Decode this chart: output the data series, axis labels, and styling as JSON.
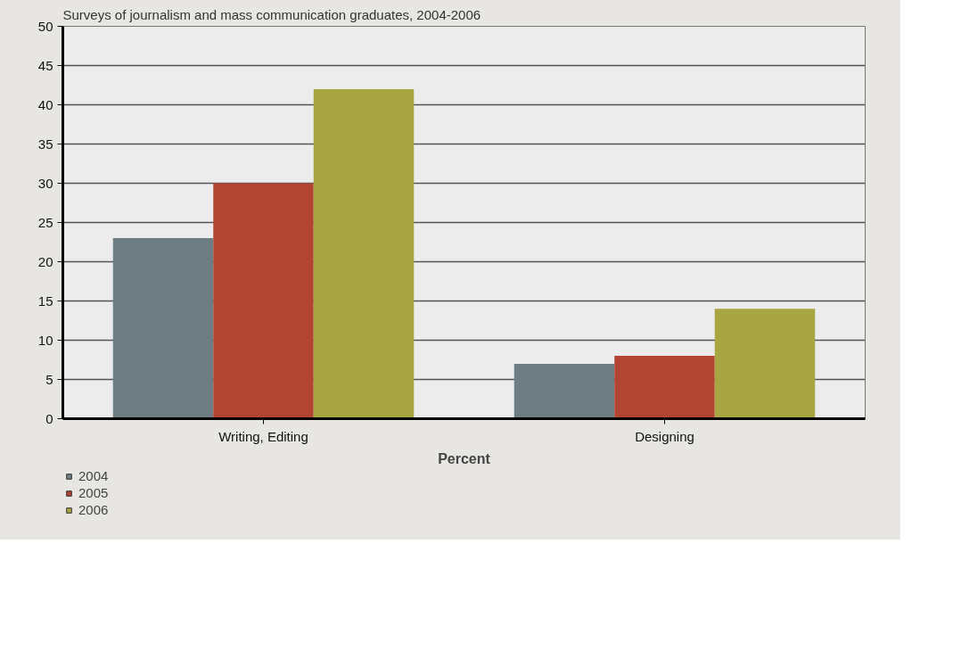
{
  "chart_data": {
    "type": "bar",
    "title": "Surveys of journalism and mass communication graduates, 2004-2006",
    "xlabel": "Percent",
    "categories": [
      "Writing, Editing",
      "Designing"
    ],
    "series": [
      {
        "name": "2004",
        "color": "#6e7c83",
        "values": [
          23,
          7
        ]
      },
      {
        "name": "2005",
        "color": "#b14432",
        "values": [
          30,
          8
        ]
      },
      {
        "name": "2006",
        "color": "#a8a543",
        "values": [
          42,
          14
        ]
      }
    ],
    "ylim": [
      0,
      50
    ],
    "yticks": [
      0,
      5,
      10,
      15,
      20,
      25,
      30,
      35,
      40,
      45,
      50
    ],
    "grid": "y",
    "legend": "bottom left"
  }
}
